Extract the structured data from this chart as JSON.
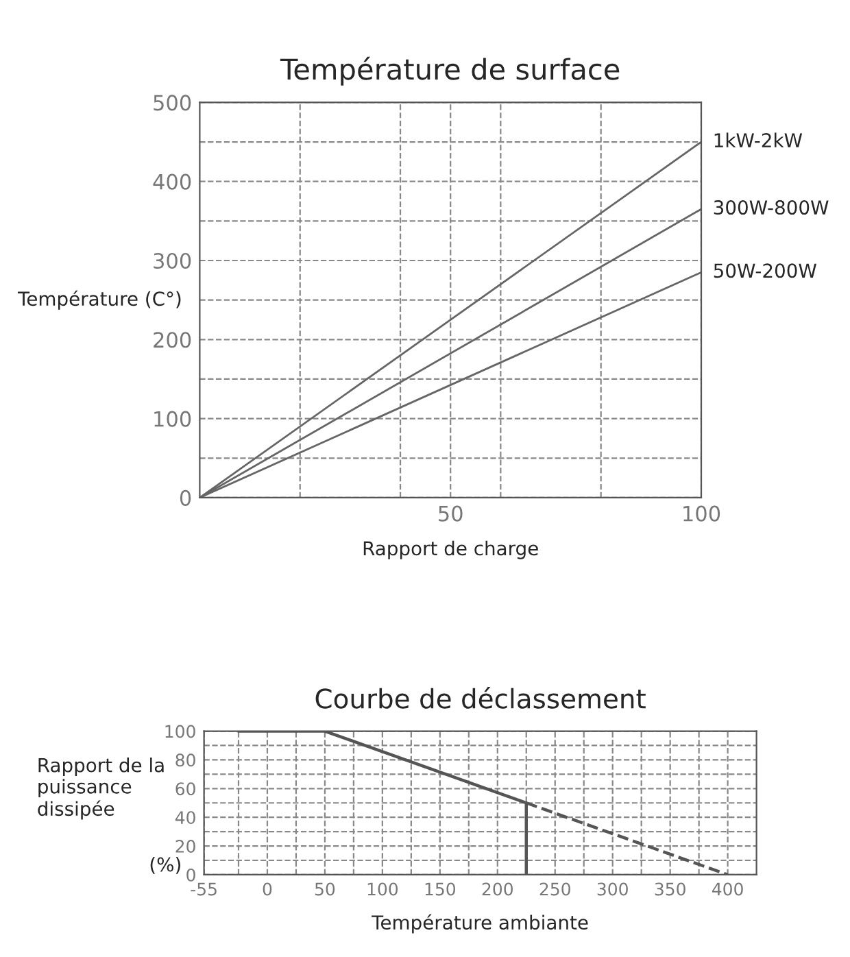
{
  "chart_data": [
    {
      "type": "line",
      "title": "Température de surface",
      "xlabel": "Rapport de charge",
      "ylabel": "Température (C°)",
      "x": [
        0,
        100
      ],
      "series": [
        {
          "name": "1kW-2kW",
          "color": "#666666",
          "values": [
            0,
            450
          ]
        },
        {
          "name": "300W-800W",
          "color": "#666666",
          "values": [
            0,
            365
          ]
        },
        {
          "name": "50W-200W",
          "color": "#666666",
          "values": [
            0,
            285
          ]
        }
      ],
      "xlim": [
        0,
        100
      ],
      "xticks": [
        {
          "value": 20,
          "label": null
        },
        {
          "value": 40,
          "label": null
        },
        50,
        {
          "value": 60,
          "label": null
        },
        {
          "value": 80,
          "label": null
        },
        100
      ],
      "ylim": [
        0,
        500
      ],
      "yticks": [
        0,
        {
          "value": 50,
          "label": null
        },
        100,
        {
          "value": 150,
          "label": null
        },
        200,
        {
          "value": 250,
          "label": null
        },
        300,
        {
          "value": 350,
          "label": null
        },
        400,
        {
          "value": 450,
          "label": null
        },
        500
      ],
      "grid": true,
      "line_style": "solid",
      "marker": "none",
      "legend": false
    },
    {
      "type": "line",
      "title": "Courbe de déclassement",
      "xlabel": "Température ambiante",
      "ylabel": "Rapport de la\npuissance\ndissipée",
      "annotations": [
        "(%)"
      ],
      "series": [
        {
          "color": "#555555",
          "x": [
            -25,
            50,
            225,
            225
          ],
          "values": [
            100,
            100,
            50,
            0
          ],
          "line_style": "solid"
        },
        {
          "color": "#555555",
          "x": [
            225,
            400
          ],
          "values": [
            50,
            0
          ],
          "line_style": "dashed"
        }
      ],
      "xlim": [
        -55,
        425
      ],
      "xticks": [
        -55,
        {
          "value": -25,
          "label": null
        },
        0,
        {
          "value": 25,
          "label": null
        },
        50,
        {
          "value": 75,
          "label": null
        },
        100,
        {
          "value": 125,
          "label": null
        },
        150,
        {
          "value": 175,
          "label": null
        },
        200,
        {
          "value": 225,
          "label": null
        },
        250,
        {
          "value": 275,
          "label": null
        },
        300,
        {
          "value": 325,
          "label": null
        },
        350,
        {
          "value": 375,
          "label": null
        },
        400
      ],
      "ylim": [
        0,
        100
      ],
      "yticks": [
        0,
        {
          "value": 10,
          "label": null
        },
        20,
        {
          "value": 30,
          "label": null
        },
        40,
        {
          "value": 50,
          "label": null
        },
        60,
        {
          "value": 70,
          "label": null
        },
        80,
        {
          "value": 90,
          "label": null
        },
        100
      ],
      "grid": true,
      "marker": "none",
      "legend": false
    }
  ]
}
